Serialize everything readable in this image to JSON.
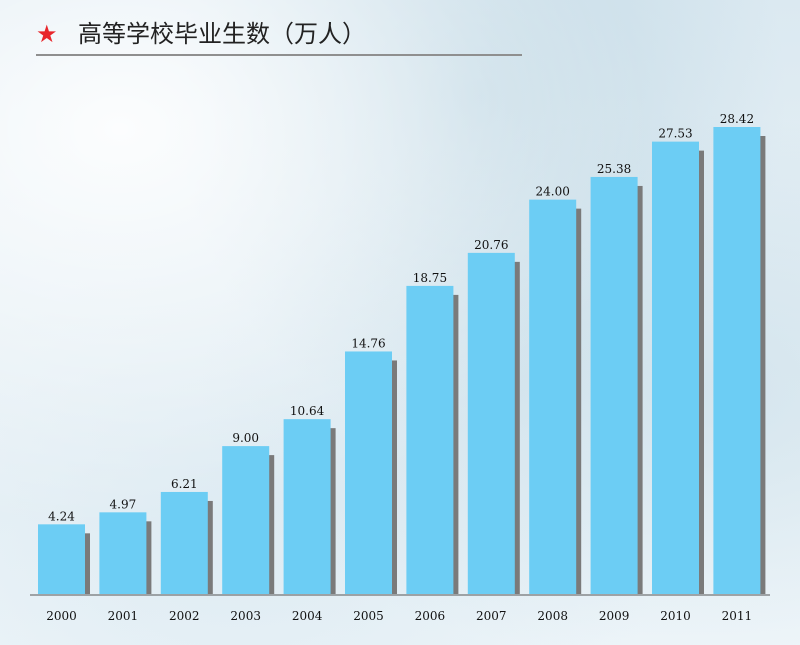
{
  "title": "高等学校毕业生数（万人）",
  "title_icon": "red-star-icon",
  "colors": {
    "bar": "#6ccdf4",
    "bar_shadow": "#7a7a7a",
    "star": "#e8262b",
    "axis": "#555555"
  },
  "chart_data": {
    "type": "bar",
    "title": "高等学校毕业生数（万人）",
    "xlabel": "",
    "ylabel": "",
    "categories": [
      "2000",
      "2001",
      "2002",
      "2003",
      "2004",
      "2005",
      "2006",
      "2007",
      "2008",
      "2009",
      "2010",
      "2011"
    ],
    "values": [
      4.24,
      4.97,
      6.21,
      9.0,
      10.64,
      14.76,
      18.75,
      20.76,
      24.0,
      25.38,
      27.53,
      28.42
    ],
    "value_labels": [
      "4.24",
      "4.97",
      "6.21",
      "9.00",
      "10.64",
      "14.76",
      "18.75",
      "20.76",
      "24.00",
      "25.38",
      "27.53",
      "28.42"
    ],
    "ylim": [
      0,
      28.42
    ],
    "grid": false,
    "legend": "none"
  }
}
